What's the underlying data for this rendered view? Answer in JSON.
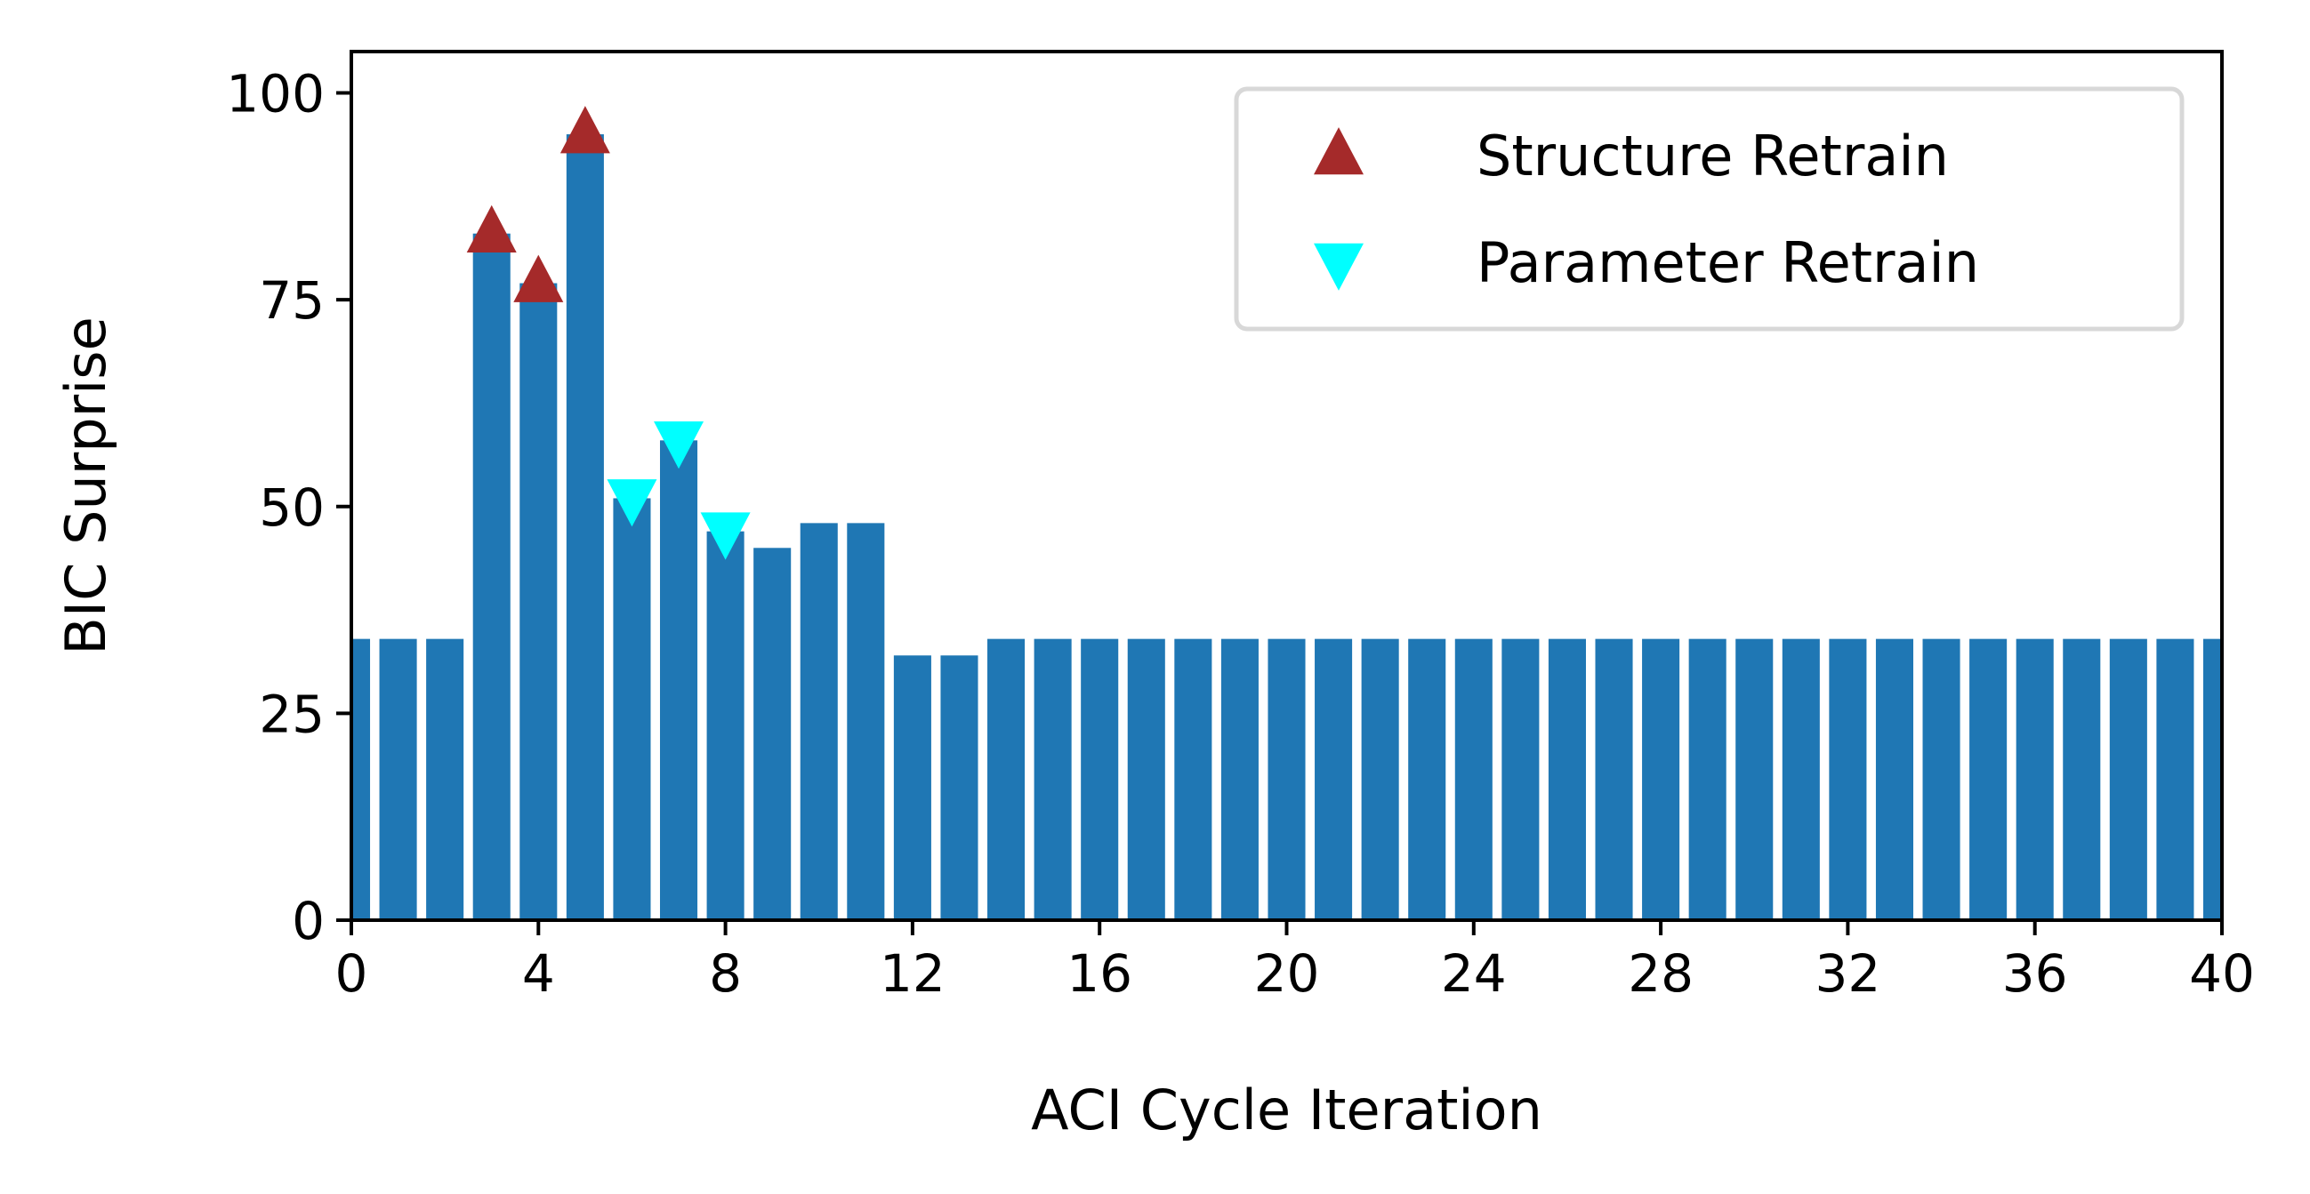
{
  "chart_data": {
    "type": "bar",
    "title": "",
    "xlabel": "ACI Cycle Iteration",
    "ylabel": "BIC Surprise",
    "xlim": [
      0,
      40
    ],
    "ylim": [
      0,
      105
    ],
    "xticks": [
      0,
      4,
      8,
      12,
      16,
      20,
      24,
      28,
      32,
      36,
      40
    ],
    "yticks": [
      0,
      25,
      50,
      75,
      100
    ],
    "grid": false,
    "legend_position": "top-right",
    "bar_color": "#1f77b4",
    "x": [
      0,
      1,
      2,
      3,
      4,
      5,
      6,
      7,
      8,
      9,
      10,
      11,
      12,
      13,
      14,
      15,
      16,
      17,
      18,
      19,
      20,
      21,
      22,
      23,
      24,
      25,
      26,
      27,
      28,
      29,
      30,
      31,
      32,
      33,
      34,
      35,
      36,
      37,
      38,
      39,
      40
    ],
    "values": [
      34,
      34,
      34,
      83,
      77,
      95,
      51,
      58,
      47,
      45,
      48,
      48,
      32,
      32,
      34,
      34,
      34,
      34,
      34,
      34,
      34,
      34,
      34,
      34,
      34,
      34,
      34,
      34,
      34,
      34,
      34,
      34,
      34,
      34,
      34,
      34,
      34,
      34,
      34,
      34,
      34
    ],
    "markers": [
      {
        "name": "Structure Retrain",
        "symbol": "triangle-up",
        "color": "#a52a2a",
        "points": [
          [
            3,
            83
          ],
          [
            4,
            77
          ],
          [
            5,
            95
          ]
        ]
      },
      {
        "name": "Parameter Retrain",
        "symbol": "triangle-down",
        "color": "#00ffff",
        "points": [
          [
            6,
            51
          ],
          [
            7,
            58
          ],
          [
            8,
            47
          ]
        ]
      }
    ]
  }
}
